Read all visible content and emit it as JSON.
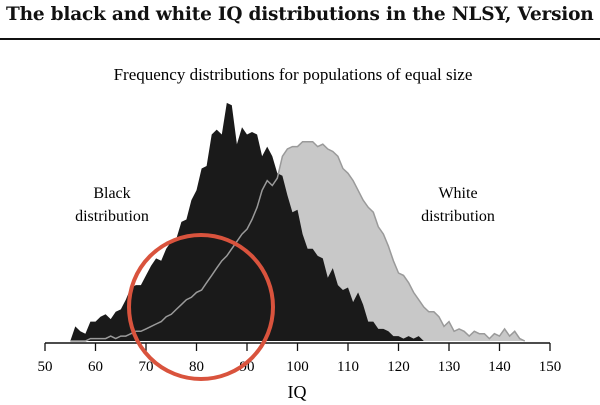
{
  "page_title": "The black and white IQ distributions in the NLSY, Version I",
  "chart_data": {
    "type": "area",
    "title": "Frequency distributions for populations of equal size",
    "xlabel": "IQ",
    "ylabel": "",
    "xlim": [
      50,
      150
    ],
    "ylim": [
      0,
      1
    ],
    "xticks": [
      50,
      60,
      70,
      80,
      90,
      100,
      110,
      120,
      130,
      140,
      150
    ],
    "grid": false,
    "series": [
      {
        "name": "Black distribution",
        "label_lines": [
          "Black",
          "distribution"
        ],
        "color": "#1a1a1a",
        "x": [
          55,
          56,
          57,
          58,
          59,
          60,
          61,
          62,
          63,
          64,
          65,
          66,
          67,
          68,
          69,
          70,
          71,
          72,
          73,
          74,
          75,
          76,
          77,
          78,
          79,
          80,
          81,
          82,
          83,
          84,
          85,
          86,
          87,
          88,
          89,
          90,
          91,
          92,
          93,
          94,
          95,
          96,
          97,
          98,
          99,
          100,
          101,
          102,
          103,
          104,
          105,
          106,
          107,
          108,
          109,
          110,
          111,
          112,
          113,
          114,
          115,
          116,
          117,
          118,
          119,
          120,
          121,
          122,
          123,
          124,
          125,
          126,
          127,
          128,
          129,
          130,
          131,
          132,
          133,
          134,
          135,
          136,
          137,
          138,
          139,
          140,
          141,
          142,
          143,
          144,
          145
        ],
        "y": [
          0.0,
          0.06,
          0.04,
          0.03,
          0.08,
          0.08,
          0.1,
          0.11,
          0.09,
          0.12,
          0.13,
          0.17,
          0.22,
          0.23,
          0.23,
          0.27,
          0.31,
          0.34,
          0.33,
          0.38,
          0.41,
          0.42,
          0.49,
          0.5,
          0.58,
          0.62,
          0.71,
          0.72,
          0.85,
          0.87,
          0.85,
          0.98,
          0.97,
          0.81,
          0.88,
          0.85,
          0.86,
          0.85,
          0.76,
          0.8,
          0.76,
          0.69,
          0.68,
          0.6,
          0.53,
          0.54,
          0.44,
          0.38,
          0.38,
          0.35,
          0.34,
          0.26,
          0.3,
          0.23,
          0.21,
          0.22,
          0.16,
          0.2,
          0.15,
          0.08,
          0.08,
          0.05,
          0.05,
          0.04,
          0.02,
          0.02,
          0.01,
          0.02,
          0.01,
          0.02,
          0.0,
          0.0,
          0.0,
          0.0,
          0.0,
          0.0,
          0.0,
          0.0,
          0.0,
          0.0,
          0.0,
          0.0,
          0.0,
          0.0,
          0.0,
          0.0,
          0.0,
          0.0,
          0.0,
          0.0,
          0.0
        ]
      },
      {
        "name": "White distribution",
        "label_lines": [
          "White",
          "distribution"
        ],
        "color": "#c8c8c8",
        "x": [
          55,
          56,
          57,
          58,
          59,
          60,
          61,
          62,
          63,
          64,
          65,
          66,
          67,
          68,
          69,
          70,
          71,
          72,
          73,
          74,
          75,
          76,
          77,
          78,
          79,
          80,
          81,
          82,
          83,
          84,
          85,
          86,
          87,
          88,
          89,
          90,
          91,
          92,
          93,
          94,
          95,
          96,
          97,
          98,
          99,
          100,
          101,
          102,
          103,
          104,
          105,
          106,
          107,
          108,
          109,
          110,
          111,
          112,
          113,
          114,
          115,
          116,
          117,
          118,
          119,
          120,
          121,
          122,
          123,
          124,
          125,
          126,
          127,
          128,
          129,
          130,
          131,
          132,
          133,
          134,
          135,
          136,
          137,
          138,
          139,
          140,
          141,
          142,
          143,
          144,
          145
        ],
        "y": [
          0.0,
          0.0,
          0.0,
          0.0,
          0.01,
          0.01,
          0.01,
          0.01,
          0.02,
          0.01,
          0.02,
          0.02,
          0.03,
          0.04,
          0.04,
          0.05,
          0.06,
          0.07,
          0.08,
          0.1,
          0.11,
          0.13,
          0.15,
          0.17,
          0.18,
          0.2,
          0.21,
          0.24,
          0.27,
          0.3,
          0.33,
          0.35,
          0.38,
          0.41,
          0.44,
          0.46,
          0.5,
          0.55,
          0.62,
          0.66,
          0.64,
          0.67,
          0.76,
          0.79,
          0.8,
          0.8,
          0.82,
          0.82,
          0.82,
          0.8,
          0.81,
          0.79,
          0.78,
          0.76,
          0.71,
          0.69,
          0.66,
          0.62,
          0.58,
          0.55,
          0.53,
          0.47,
          0.44,
          0.39,
          0.33,
          0.28,
          0.27,
          0.24,
          0.2,
          0.17,
          0.14,
          0.12,
          0.12,
          0.1,
          0.06,
          0.08,
          0.04,
          0.05,
          0.04,
          0.02,
          0.04,
          0.03,
          0.03,
          0.01,
          0.03,
          0.02,
          0.05,
          0.02,
          0.04,
          0.01,
          0.0
        ]
      }
    ]
  }
}
